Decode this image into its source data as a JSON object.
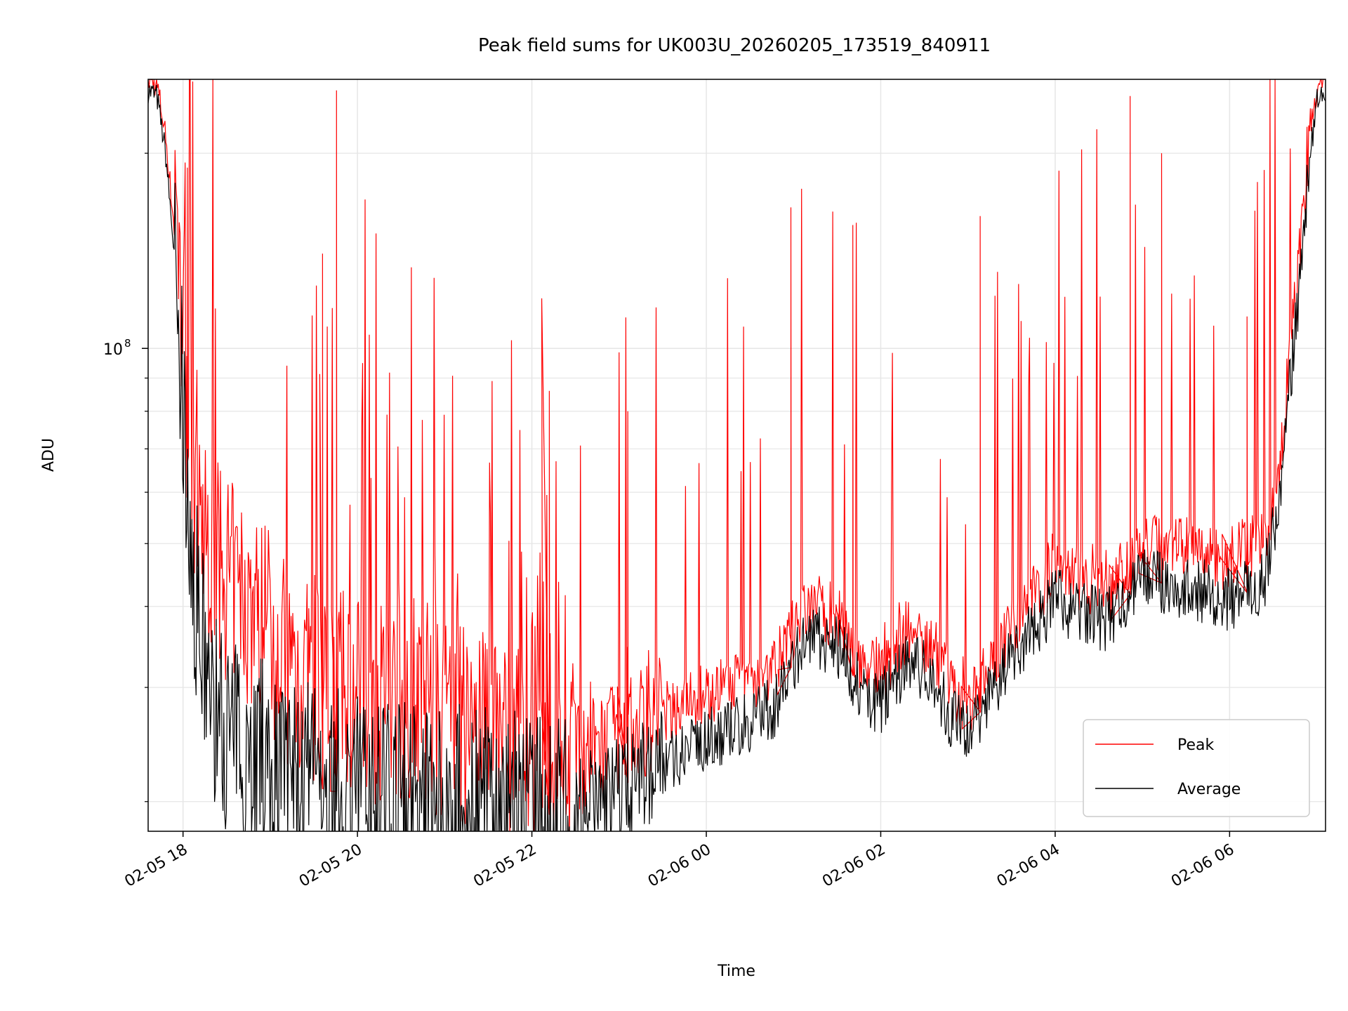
{
  "chart_data": {
    "type": "line",
    "title": "Peak field sums for UK003U_20260205_173519_840911",
    "xlabel": "Time",
    "ylabel": "ADU",
    "yscale": "log",
    "ylim": [
      18000000,
      260000000
    ],
    "xlim_hours": [
      17.6,
      31.1
    ],
    "grid": true,
    "legend_position": "lower-right",
    "x_ticks": [
      {
        "hour": 18,
        "label": "02-05 18"
      },
      {
        "hour": 20,
        "label": "02-05 20"
      },
      {
        "hour": 22,
        "label": "02-05 22"
      },
      {
        "hour": 24,
        "label": "02-06 00"
      },
      {
        "hour": 26,
        "label": "02-06 02"
      },
      {
        "hour": 28,
        "label": "02-06 04"
      },
      {
        "hour": 30,
        "label": "02-06 06"
      }
    ],
    "y_major_ticks": [
      {
        "value": 100000000,
        "base": "10",
        "exp": "8"
      }
    ],
    "y_minor_ticks": [
      20000000,
      30000000,
      40000000,
      50000000,
      60000000,
      70000000,
      80000000,
      90000000,
      200000000
    ],
    "series": [
      {
        "name": "Peak",
        "color": "#ff0000",
        "hours": [
          17.6,
          17.7,
          17.8,
          17.9,
          18.0,
          18.1,
          18.2,
          18.3,
          18.4,
          18.5,
          18.6,
          18.8,
          19.0,
          19.2,
          19.5,
          20.0,
          20.5,
          21.0,
          21.5,
          22.0,
          22.5,
          23.0,
          23.5,
          24.0,
          24.4,
          24.8,
          25.0,
          25.2,
          25.5,
          25.8,
          26.0,
          26.3,
          26.6,
          26.8,
          27.0,
          27.3,
          27.6,
          28.0,
          28.3,
          28.6,
          29.0,
          29.4,
          29.8,
          30.0,
          30.2,
          30.4,
          30.5,
          30.6,
          30.7,
          30.8,
          30.9,
          31.0,
          31.1
        ],
        "values": [
          255000000,
          250000000,
          210000000,
          150000000,
          85000000,
          55000000,
          45000000,
          42000000,
          40000000,
          38000000,
          37000000,
          34000000,
          32000000,
          28000000,
          26000000,
          25000000,
          24000000,
          23000000,
          22000000,
          21500000,
          21000000,
          23000000,
          26000000,
          28000000,
          29000000,
          31000000,
          35000000,
          38000000,
          37000000,
          31000000,
          30000000,
          35000000,
          33000000,
          29000000,
          27000000,
          32000000,
          37000000,
          44000000,
          42000000,
          40000000,
          48000000,
          47000000,
          46000000,
          45000000,
          47000000,
          48000000,
          55000000,
          70000000,
          95000000,
          130000000,
          190000000,
          245000000,
          255000000
        ],
        "spikes": [
          {
            "hour": 18.05,
            "value": 190000000
          },
          {
            "hour": 19.6,
            "value": 140000000
          },
          {
            "hour": 19.76,
            "value": 250000000
          },
          {
            "hour": 22.2,
            "value": 86000000
          },
          {
            "hour": 23.1,
            "value": 80000000
          },
          {
            "hour": 24.97,
            "value": 165000000
          },
          {
            "hour": 25.68,
            "value": 155000000
          },
          {
            "hour": 27.14,
            "value": 160000000
          },
          {
            "hour": 28.86,
            "value": 245000000
          },
          {
            "hour": 29.22,
            "value": 200000000
          },
          {
            "hour": 30.2,
            "value": 112000000
          }
        ]
      },
      {
        "name": "Average",
        "color": "#000000",
        "hours": [
          17.6,
          17.7,
          17.8,
          17.9,
          18.0,
          18.1,
          18.2,
          18.3,
          18.4,
          18.5,
          18.6,
          18.8,
          19.0,
          19.2,
          19.5,
          20.0,
          20.5,
          21.0,
          21.5,
          22.0,
          22.5,
          23.0,
          23.5,
          24.0,
          24.4,
          24.8,
          25.0,
          25.2,
          25.5,
          25.8,
          26.0,
          26.3,
          26.6,
          26.8,
          27.0,
          27.3,
          27.6,
          28.0,
          28.3,
          28.6,
          29.0,
          29.4,
          29.8,
          30.0,
          30.2,
          30.4,
          30.5,
          30.6,
          30.7,
          30.8,
          30.9,
          31.0,
          31.1
        ],
        "values": [
          250000000,
          245000000,
          200000000,
          140000000,
          80000000,
          48000000,
          35000000,
          30000000,
          27000000,
          26000000,
          25000000,
          24000000,
          23500000,
          22000000,
          21000000,
          20500000,
          20000000,
          19800000,
          19500000,
          19000000,
          19200000,
          21000000,
          23000000,
          25000000,
          26000000,
          28000000,
          33000000,
          36000000,
          35000000,
          29000000,
          28500000,
          33000000,
          31000000,
          27000000,
          25500000,
          30000000,
          35000000,
          41000000,
          39000000,
          38000000,
          44000000,
          43000000,
          42000000,
          41000000,
          42000000,
          44000000,
          52000000,
          65000000,
          90000000,
          125000000,
          185000000,
          240000000,
          250000000
        ]
      }
    ]
  }
}
